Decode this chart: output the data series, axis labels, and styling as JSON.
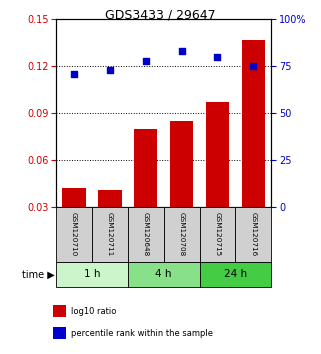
{
  "title": "GDS3433 / 29647",
  "samples": [
    "GSM120710",
    "GSM120711",
    "GSM120648",
    "GSM120708",
    "GSM120715",
    "GSM120716"
  ],
  "log10_ratio": [
    0.042,
    0.041,
    0.08,
    0.085,
    0.097,
    0.137
  ],
  "percentile_rank": [
    71,
    73,
    78,
    83,
    80,
    75
  ],
  "ylim_left": [
    0.03,
    0.15
  ],
  "ylim_right": [
    0,
    100
  ],
  "yticks_left": [
    0.03,
    0.06,
    0.09,
    0.12,
    0.15
  ],
  "yticks_right": [
    0,
    25,
    50,
    75,
    100
  ],
  "ytick_labels_right": [
    "0",
    "25",
    "50",
    "75",
    "100%"
  ],
  "bar_color": "#cc0000",
  "scatter_color": "#0000cc",
  "groups": [
    {
      "label": "1 h",
      "indices": [
        0,
        1
      ],
      "color": "#ccf5cc"
    },
    {
      "label": "4 h",
      "indices": [
        2,
        3
      ],
      "color": "#88e088"
    },
    {
      "label": "24 h",
      "indices": [
        4,
        5
      ],
      "color": "#44cc44"
    }
  ],
  "xlabel_time": "time",
  "legend": [
    {
      "color": "#cc0000",
      "label": "log10 ratio"
    },
    {
      "color": "#0000cc",
      "label": "percentile rank within the sample"
    }
  ],
  "grid_color": "black",
  "sample_label_bg": "#d0d0d0",
  "left_tick_color": "#cc0000",
  "right_tick_color": "#0000cc"
}
